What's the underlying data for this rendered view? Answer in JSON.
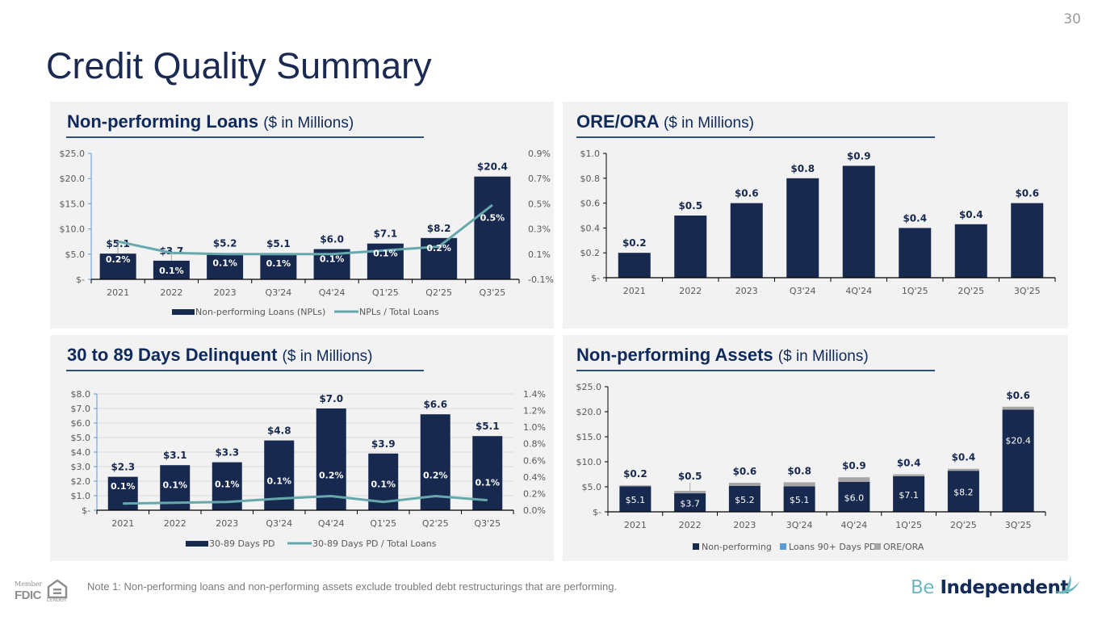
{
  "page": {
    "number": "30",
    "title": "Credit Quality Summary",
    "note": "Note 1: Non-performing loans and non-performing assets exclude troubled debt restructurings that are performing.",
    "fdic": {
      "member": "Member",
      "fdic": "FDIC",
      "lender": "LENDER",
      "icon": "equal-housing-lender-icon"
    },
    "brand": {
      "be": "Be",
      "independent": "Independent",
      "icon": "bird-logo-icon"
    }
  },
  "colors": {
    "navy": "#17294f",
    "teal": "#65a9ad",
    "gray": "#a6a6a6",
    "light_blue": "#5b9bd5",
    "panel_bg": "#f2f2f2"
  },
  "chart_data": [
    {
      "id": "npl",
      "type": "bar",
      "title": "Non-performing Loans",
      "subtitle": "($ in Millions)",
      "categories": [
        "2021",
        "2022",
        "2023",
        "Q3'24",
        "Q4'24",
        "Q1'25",
        "Q2'25",
        "Q3'25"
      ],
      "series": [
        {
          "name": "Non-performing Loans (NPLs)",
          "kind": "bar",
          "axis": "left",
          "values": [
            5.1,
            3.7,
            5.2,
            5.1,
            6.0,
            7.1,
            8.2,
            20.4
          ],
          "labels": [
            "$5.1",
            "$3.7",
            "$5.2",
            "$5.1",
            "$6.0",
            "$7.1",
            "$8.2",
            "$20.4"
          ]
        },
        {
          "name": "NPLs / Total Loans",
          "kind": "line",
          "axis": "right",
          "values": [
            0.2,
            0.11,
            0.1,
            0.1,
            0.1,
            0.13,
            0.16,
            0.49
          ],
          "labels": [
            "0.2%",
            "0.1%",
            "0.1%",
            "0.1%",
            "0.1%",
            "0.1%",
            "0.2%",
            "0.5%"
          ]
        }
      ],
      "ylim": [
        0,
        25
      ],
      "yticks": [
        0,
        5,
        10,
        15,
        20,
        25
      ],
      "ytick_labels": [
        "$-",
        "$5.0",
        "$10.0",
        "$15.0",
        "$20.0",
        "$25.0"
      ],
      "y2lim": [
        -0.1,
        0.9
      ],
      "y2ticks": [
        -0.1,
        0.1,
        0.3,
        0.5,
        0.7,
        0.9
      ],
      "y2tick_labels": [
        "-0.1%",
        "0.1%",
        "0.3%",
        "0.5%",
        "0.7%",
        "0.9%"
      ],
      "grid": false,
      "legend": "bottom"
    },
    {
      "id": "ore",
      "type": "bar",
      "title": "ORE/ORA",
      "subtitle": "($ in Millions)",
      "categories": [
        "2021",
        "2022",
        "2023",
        "Q3'24",
        "4Q'24",
        "1Q'25",
        "2Q'25",
        "3Q'25"
      ],
      "series": [
        {
          "name": "ORE/ORA",
          "kind": "bar",
          "axis": "left",
          "values": [
            0.2,
            0.5,
            0.6,
            0.8,
            0.9,
            0.4,
            0.43,
            0.6
          ],
          "labels": [
            "$0.2",
            "$0.5",
            "$0.6",
            "$0.8",
            "$0.9",
            "$0.4",
            "$0.4",
            "$0.6"
          ]
        }
      ],
      "ylim": [
        0,
        1.0
      ],
      "yticks": [
        0,
        0.2,
        0.4,
        0.6,
        0.8,
        1.0
      ],
      "ytick_labels": [
        "$-",
        "$0.2",
        "$0.4",
        "$0.6",
        "$0.8",
        "$1.0"
      ],
      "grid": false,
      "legend": "none"
    },
    {
      "id": "delinq",
      "type": "bar",
      "title": "30 to 89 Days Delinquent",
      "subtitle": "($ in Millions)",
      "categories": [
        "2021",
        "2022",
        "2023",
        "Q3'24",
        "Q4'24",
        "Q1'25",
        "Q2'25",
        "Q3'25"
      ],
      "series": [
        {
          "name": "30-89 Days PD",
          "kind": "bar",
          "axis": "left",
          "values": [
            2.3,
            3.1,
            3.3,
            4.8,
            7.0,
            3.9,
            6.6,
            5.1
          ],
          "labels": [
            "$2.3",
            "$3.1",
            "$3.3",
            "$4.8",
            "$7.0",
            "$3.9",
            "$6.6",
            "$5.1"
          ]
        },
        {
          "name": "30-89 Days PD / Total Loans",
          "kind": "line",
          "axis": "right",
          "values": [
            0.08,
            0.09,
            0.1,
            0.14,
            0.17,
            0.1,
            0.17,
            0.12
          ],
          "labels": [
            "0.1%",
            "0.1%",
            "0.1%",
            "0.1%",
            "0.2%",
            "0.1%",
            "0.2%",
            "0.1%"
          ]
        }
      ],
      "ylim": [
        0,
        8
      ],
      "yticks": [
        0,
        1,
        2,
        3,
        4,
        5,
        6,
        7,
        8
      ],
      "ytick_labels": [
        "$-",
        "$1.0",
        "$2.0",
        "$3.0",
        "$4.0",
        "$5.0",
        "$6.0",
        "$7.0",
        "$8.0"
      ],
      "y2lim": [
        0,
        1.4
      ],
      "y2ticks": [
        0,
        0.2,
        0.4,
        0.6,
        0.8,
        1.0,
        1.2,
        1.4
      ],
      "y2tick_labels": [
        "0.0%",
        "0.2%",
        "0.4%",
        "0.6%",
        "0.8%",
        "1.0%",
        "1.2%",
        "1.4%"
      ],
      "grid": true,
      "legend": "bottom"
    },
    {
      "id": "npa",
      "type": "stacked-bar",
      "title": "Non-performing Assets",
      "subtitle": "($ in Millions)",
      "categories": [
        "2021",
        "2022",
        "2023",
        "3Q'24",
        "4Q'24",
        "1Q'25",
        "2Q'25",
        "3Q'25"
      ],
      "series": [
        {
          "name": "Non-performing",
          "kind": "bar",
          "values": [
            5.1,
            3.7,
            5.2,
            5.1,
            6.0,
            7.1,
            8.2,
            20.4
          ],
          "labels": [
            "$5.1",
            "$3.7",
            "$5.2",
            "$5.1",
            "$6.0",
            "$7.1",
            "$8.2",
            "$20.4"
          ]
        },
        {
          "name": "Loans 90+ Days PD",
          "kind": "bar",
          "values": [
            0,
            0,
            0,
            0,
            0,
            0,
            0,
            0
          ],
          "labels": []
        },
        {
          "name": "ORE/ORA",
          "kind": "bar",
          "values": [
            0.2,
            0.5,
            0.6,
            0.8,
            0.9,
            0.4,
            0.4,
            0.6
          ],
          "labels": [
            "$0.2",
            "$0.5",
            "$0.6",
            "$0.8",
            "$0.9",
            "$0.4",
            "$0.4",
            "$0.6"
          ]
        }
      ],
      "ylim": [
        0,
        25
      ],
      "yticks": [
        0,
        5,
        10,
        15,
        20,
        25
      ],
      "ytick_labels": [
        "$-",
        "$5.0",
        "$10.0",
        "$15.0",
        "$20.0",
        "$25.0"
      ],
      "grid": false,
      "legend": "bottom"
    }
  ]
}
